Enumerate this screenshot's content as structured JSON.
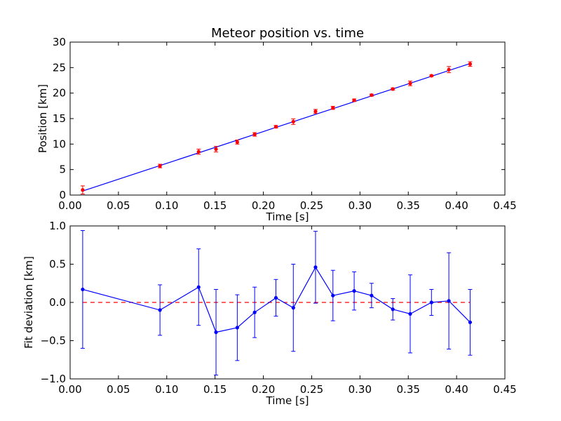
{
  "chart_data": [
    {
      "type": "scatter",
      "title": "Meteor position vs. time",
      "xlabel": "Time [s]",
      "ylabel": "Position [km]",
      "xlim": [
        0.0,
        0.45
      ],
      "ylim": [
        0,
        30
      ],
      "xticks": [
        "0.00",
        "0.05",
        "0.10",
        "0.15",
        "0.20",
        "0.25",
        "0.30",
        "0.35",
        "0.40",
        "0.45"
      ],
      "yticks": [
        "0",
        "5",
        "10",
        "15",
        "20",
        "25",
        "30"
      ],
      "grid": false,
      "colors": {
        "points": "#ff0000",
        "fit": "#0000ff"
      },
      "series": [
        {
          "kind": "errorbar-points",
          "x": [
            0.013,
            0.093,
            0.133,
            0.151,
            0.173,
            0.191,
            0.213,
            0.231,
            0.254,
            0.272,
            0.294,
            0.312,
            0.334,
            0.352,
            0.374,
            0.392,
            0.414
          ],
          "y": [
            1.0,
            5.7,
            8.5,
            9.0,
            10.4,
            11.9,
            13.4,
            14.4,
            16.4,
            17.1,
            18.6,
            19.6,
            20.8,
            21.9,
            23.4,
            24.6,
            25.7
          ],
          "yerr": [
            0.8,
            0.35,
            0.5,
            0.55,
            0.4,
            0.35,
            0.25,
            0.55,
            0.4,
            0.3,
            0.25,
            0.2,
            0.2,
            0.45,
            0.15,
            0.6,
            0.45
          ]
        },
        {
          "kind": "fit-line",
          "x": [
            0.013,
            0.414
          ],
          "y": [
            0.8,
            25.8
          ]
        }
      ]
    },
    {
      "type": "line",
      "title": "",
      "xlabel": "Time [s]",
      "ylabel": "Fit deviation [km]",
      "xlim": [
        0.0,
        0.45
      ],
      "ylim": [
        -1.0,
        1.0
      ],
      "xticks": [
        "0.00",
        "0.05",
        "0.10",
        "0.15",
        "0.20",
        "0.25",
        "0.30",
        "0.35",
        "0.40",
        "0.45"
      ],
      "yticks": [
        "−1.0",
        "−0.5",
        "0.0",
        "0.5",
        "1.0"
      ],
      "grid": false,
      "colors": {
        "line": "#0000ff",
        "zero": "#ff0000"
      },
      "series": [
        {
          "kind": "errorbar-line",
          "x": [
            0.013,
            0.093,
            0.133,
            0.151,
            0.173,
            0.191,
            0.213,
            0.231,
            0.254,
            0.272,
            0.294,
            0.312,
            0.334,
            0.352,
            0.374,
            0.392,
            0.414
          ],
          "y": [
            0.17,
            -0.1,
            0.2,
            -0.39,
            -0.33,
            -0.13,
            0.06,
            -0.07,
            0.46,
            0.09,
            0.15,
            0.09,
            -0.09,
            -0.15,
            0.0,
            0.02,
            -0.26
          ],
          "yerr": [
            0.77,
            0.33,
            0.5,
            0.56,
            0.43,
            0.33,
            0.24,
            0.57,
            0.47,
            0.33,
            0.25,
            0.16,
            0.14,
            0.51,
            0.17,
            0.63,
            0.43
          ]
        },
        {
          "kind": "zero-line",
          "x": [
            0.013,
            0.414
          ],
          "y": [
            0,
            0
          ]
        }
      ]
    }
  ]
}
